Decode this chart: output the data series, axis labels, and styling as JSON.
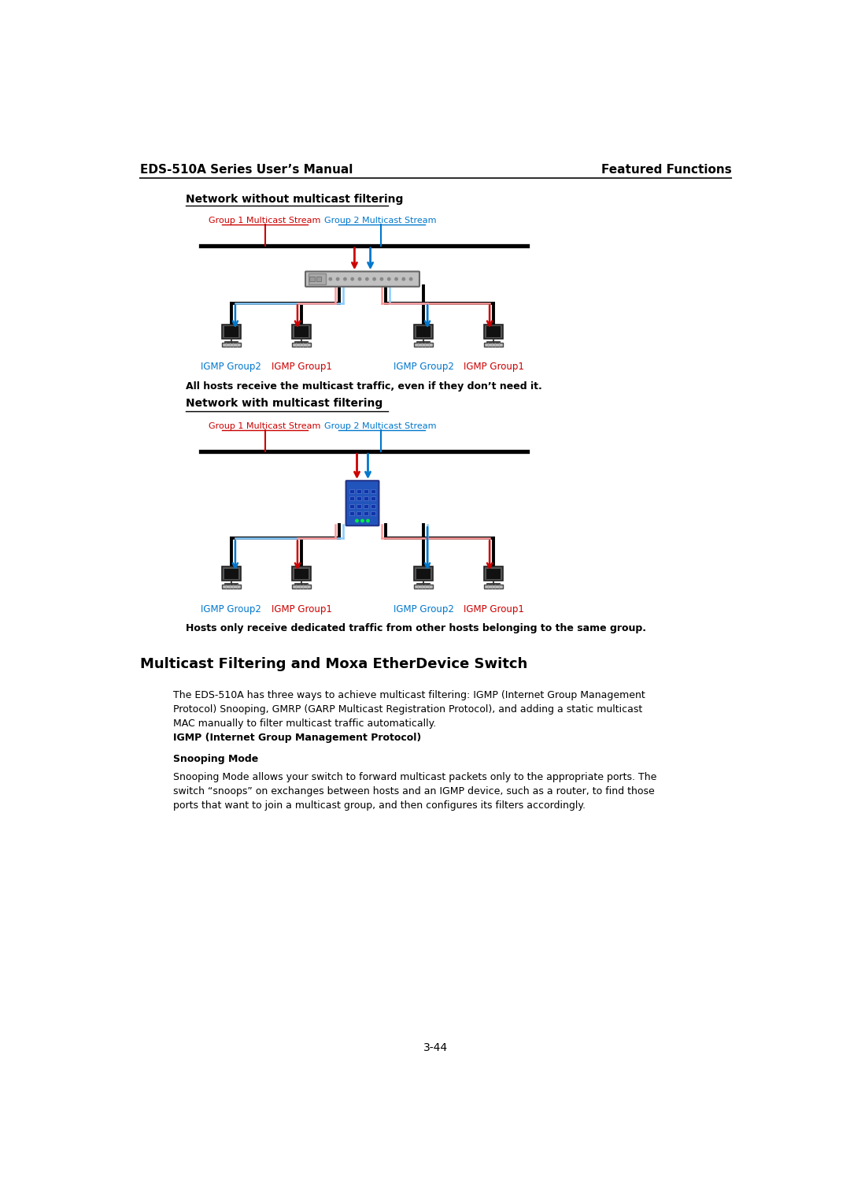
{
  "header_left": "EDS-510A Series User’s Manual",
  "header_right": "Featured Functions",
  "section1_title": "Network without multicast filtering",
  "section1_label1": "Group 1 Multicast Stream",
  "section1_label2": "Group 2 Multicast Stream",
  "igmp_labels_top": [
    "IGMP Group2",
    "IGMP Group1",
    "IGMP Group2",
    "IGMP Group1"
  ],
  "igmp_colors_top": [
    "#0077cc",
    "#cc0000",
    "#0077cc",
    "#cc0000"
  ],
  "caption1": "All hosts receive the multicast traffic, even if they don’t need it.",
  "section2_title": "Network with multicast filtering",
  "section2_label1": "Group 1 Multicast Stream",
  "section2_label2": "Group 2 Multicast Stream",
  "igmp_labels_bot": [
    "IGMP Group2",
    "IGMP Group1",
    "IGMP Group2",
    "IGMP Group1"
  ],
  "igmp_colors_bot": [
    "#0077cc",
    "#cc0000",
    "#0077cc",
    "#cc0000"
  ],
  "caption2": "Hosts only receive dedicated traffic from other hosts belonging to the same group.",
  "section3_title": "Multicast Filtering and Moxa EtherDevice Switch",
  "body_text": "The EDS-510A has three ways to achieve multicast filtering: IGMP (Internet Group Management\nProtocol) Snooping, GMRP (GARP Multicast Registration Protocol), and adding a static multicast\nMAC manually to filter multicast traffic automatically.",
  "igmp_subtitle": "IGMP (Internet Group Management Protocol)",
  "snooping_title": "Snooping Mode",
  "snooping_text": "Snooping Mode allows your switch to forward multicast packets only to the appropriate ports. The\nswitch “snoops” on exchanges between hosts and an IGMP device, such as a router, to find those\nports that want to join a multicast group, and then configures its filters accordingly.",
  "page_number": "3-44",
  "bg_color": "#ffffff",
  "text_color": "#000000",
  "line_color": "#000000",
  "red_color": "#cc0000",
  "blue_color": "#0077cc",
  "light_blue": "#88ccff",
  "light_red": "#ff9999"
}
